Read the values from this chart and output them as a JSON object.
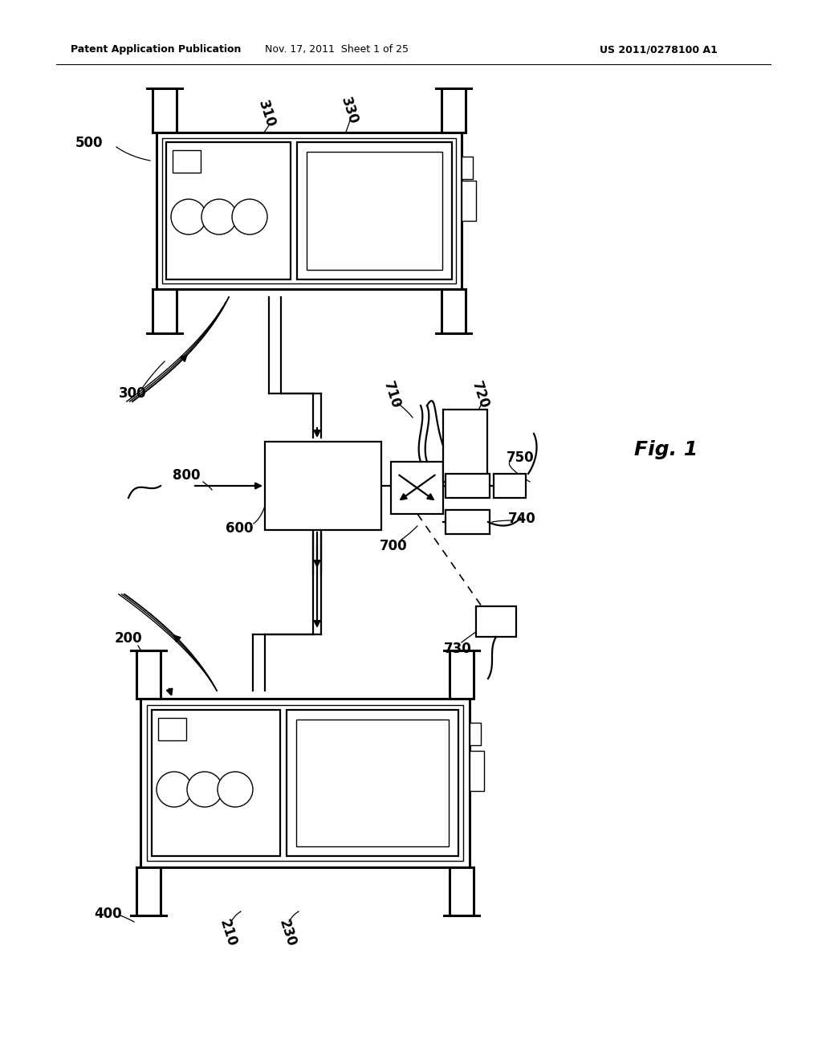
{
  "bg_color": "#ffffff",
  "header_left": "Patent Application Publication",
  "header_mid": "Nov. 17, 2011  Sheet 1 of 25",
  "header_right": "US 2011/0278100 A1",
  "fig_label": "Fig. 1",
  "lw_thick": 2.2,
  "lw_main": 1.6,
  "lw_thin": 1.0,
  "lw_curve": 1.4,
  "label_size": 12,
  "header_size": 9,
  "fig_label_size": 18,
  "col": "#000000"
}
